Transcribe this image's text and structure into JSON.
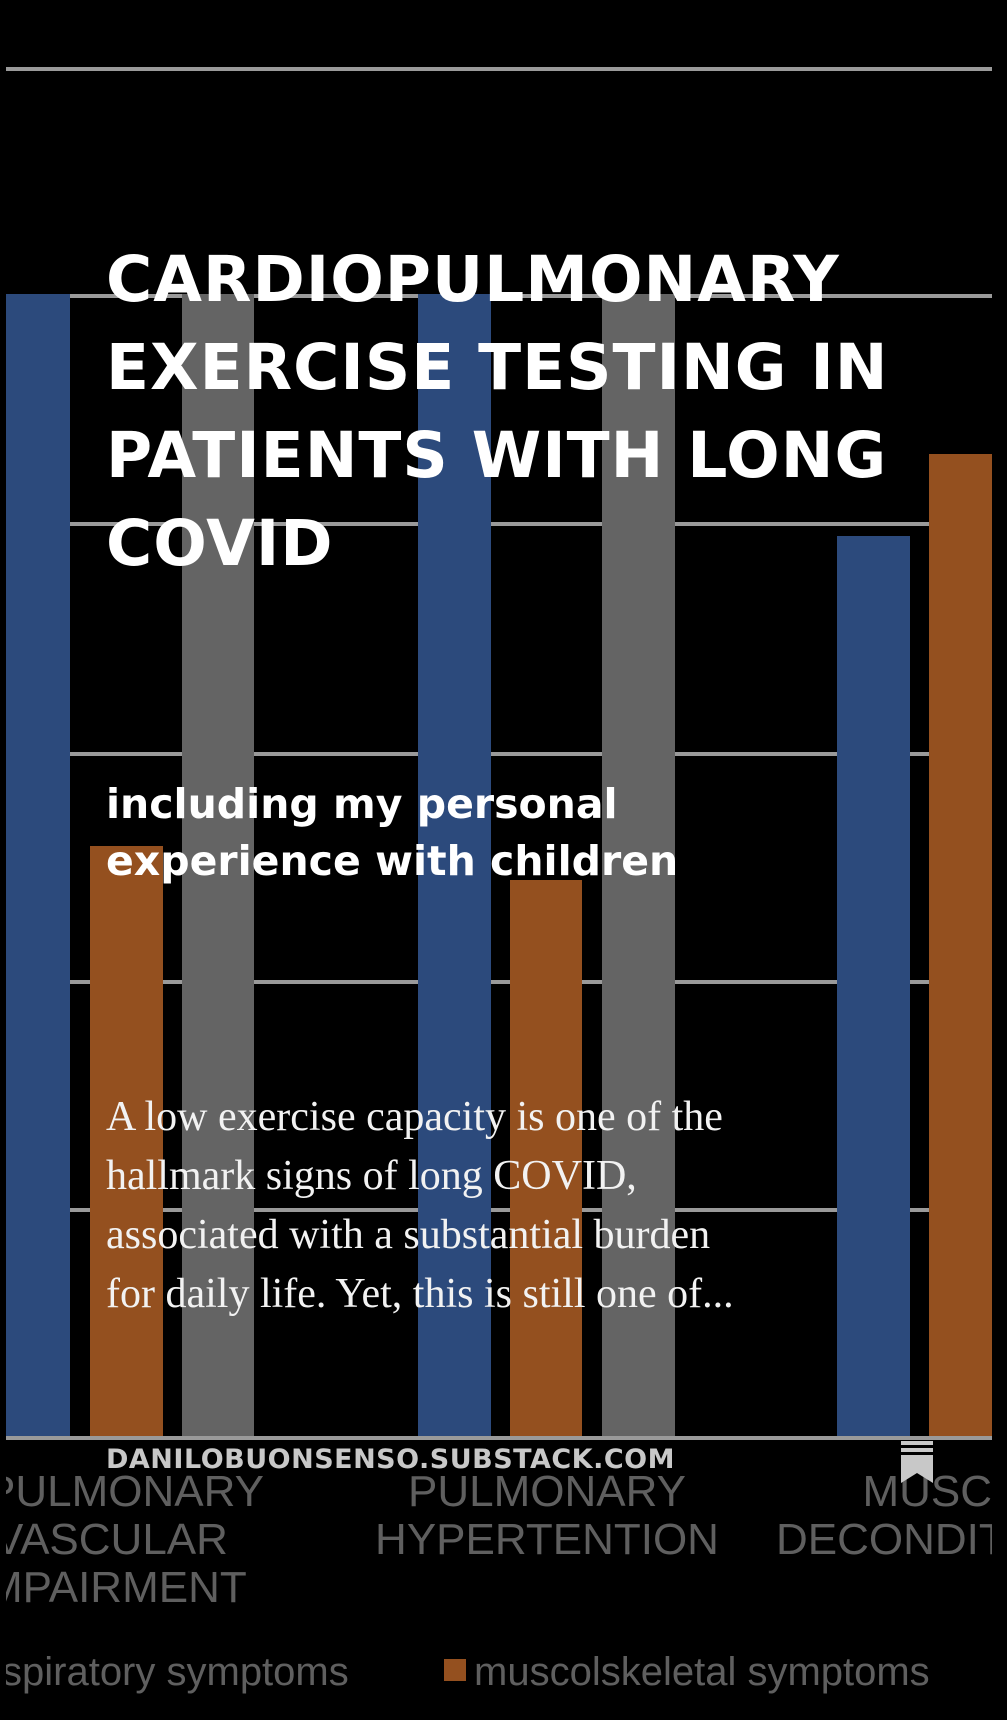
{
  "post": {
    "title": "CARDIOPULMONARY EXERCISE TESTING IN PATIENTS WITH LONG COVID",
    "subtitle": "including my personal experience with children",
    "excerpt": "A low exercise capacity is one of the hallmark signs of long COVID, associated with a substantial burden for daily life. Yet, this is still one of...",
    "domain": "DANILOBUONSENSO.SUBSTACK.COM",
    "bookmark_icon": "bookmark-icon"
  },
  "background_chart": {
    "categories": [
      {
        "lines": [
          "PULMONARY",
          "VASCULAR",
          "MPAIRMENT"
        ]
      },
      {
        "lines": [
          "PULMONARY",
          "HYPERTENTION"
        ]
      },
      {
        "lines": [
          "MUSC",
          "DECONDIT"
        ]
      }
    ],
    "legend": [
      {
        "label": "spiratory symptoms",
        "color": "#2c4a7c"
      },
      {
        "label": "muscolskeletal symptoms",
        "color": "#9a4f1f"
      }
    ],
    "colors": {
      "blue": "#2c4a7c",
      "orange": "#94501f",
      "gray": "#646464"
    }
  }
}
